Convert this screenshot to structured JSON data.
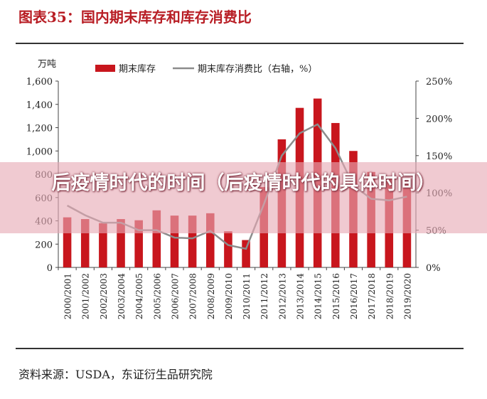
{
  "figure_title": "图表35：国内期末库存和库存消费比",
  "source": "资料来源：USDA，东证衍生品研究院",
  "overlay_title": "后疫情时代的时间（后疫情时代的具体时间）",
  "colors": {
    "bar": "#c8161d",
    "line": "#8c8c8c",
    "title": "#b81d24",
    "overlay": "#e6aab4"
  },
  "chart_data": {
    "type": "bar",
    "title": "",
    "y_unit_label": "万吨",
    "legend": [
      "期末库存",
      "期末库存消费比（右轴，%）"
    ],
    "legend_position": "top",
    "grid": false,
    "categories": [
      "2000/2001",
      "2001/2002",
      "2002/2003",
      "2003/2004",
      "2004/2005",
      "2005/2006",
      "2006/2007",
      "2007/2008",
      "2008/2009",
      "2009/2010",
      "2010/2011",
      "2011/2012",
      "2012/2013",
      "2013/2014",
      "2014/2015",
      "2015/2016",
      "2016/2017",
      "2017/2018",
      "2018/2019",
      "2019/2020"
    ],
    "ylim": [
      0,
      1600
    ],
    "yticks": [
      0,
      200,
      400,
      600,
      800,
      1000,
      1200,
      1400,
      1600
    ],
    "ytick_labels": [
      "0",
      "200",
      "400",
      "600",
      "800",
      "1,000",
      "1,200",
      "1,400",
      "1,600"
    ],
    "y2lim": [
      0,
      250
    ],
    "y2ticks": [
      0,
      50,
      100,
      150,
      200,
      250
    ],
    "y2tick_labels": [
      "0%",
      "50%",
      "100%",
      "150%",
      "200%",
      "250%"
    ],
    "series": [
      {
        "name": "期末库存",
        "type": "bar",
        "axis": "left",
        "values": [
          430,
          415,
          380,
          415,
          405,
          490,
          445,
          445,
          465,
          310,
          235,
          690,
          1100,
          1370,
          1450,
          1240,
          1000,
          820,
          760,
          720
        ]
      },
      {
        "name": "期末库存消费比（右轴，%）",
        "type": "line",
        "axis": "right",
        "values": [
          83,
          70,
          60,
          60,
          50,
          50,
          40,
          39,
          49,
          30,
          25,
          85,
          150,
          180,
          192,
          160,
          110,
          92,
          90,
          95
        ]
      }
    ]
  }
}
